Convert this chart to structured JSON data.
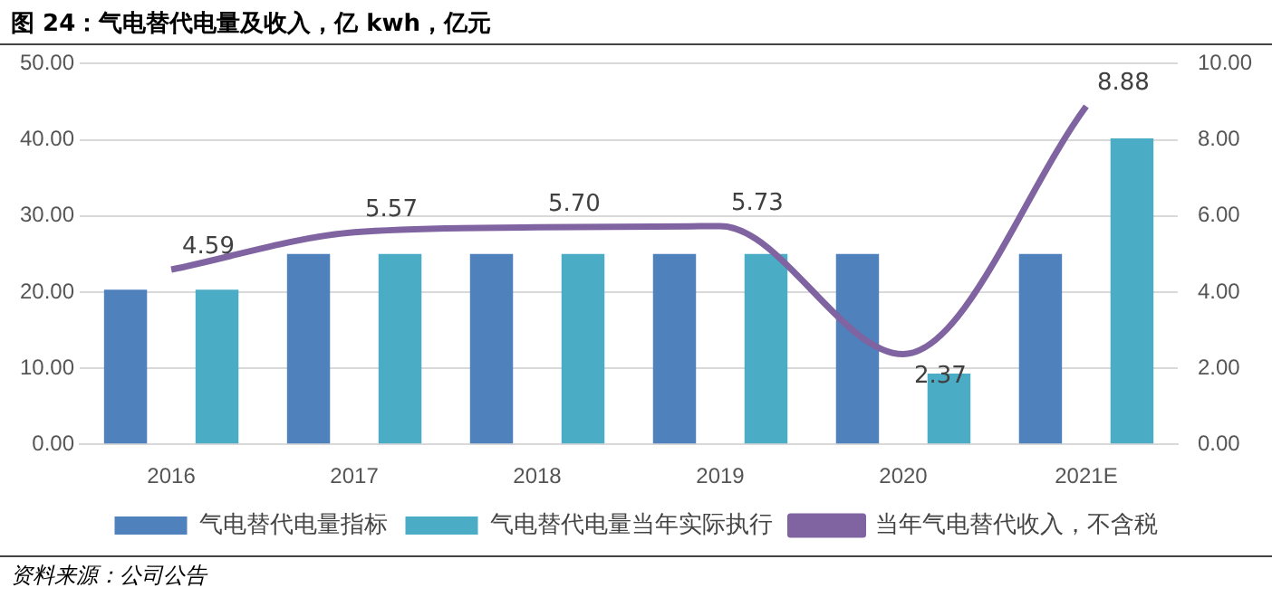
{
  "chart_data": {
    "type": "bar",
    "title": "图 24：气电替代电量及收入，亿 kwh，亿元",
    "categories": [
      "2016",
      "2017",
      "2018",
      "2019",
      "2020",
      "2021E"
    ],
    "series": [
      {
        "name": "气电替代电量指标",
        "color": "#4f81bd",
        "values": [
          20.3,
          25,
          25,
          25,
          25,
          25
        ]
      },
      {
        "name": "气电替代电量当年实际执行",
        "color": "#4bacc6",
        "values": [
          20.3,
          25,
          25,
          25,
          9.3,
          40.2
        ]
      },
      {
        "name": "当年气电替代收入，不含税",
        "type": "line",
        "axis": "y2",
        "color": "#8064a2",
        "values": [
          4.59,
          5.57,
          5.7,
          5.73,
          2.37,
          8.88
        ],
        "value_labels": [
          "4.59",
          "5.57",
          "5.70",
          "5.73",
          "2.37",
          "8.88"
        ]
      }
    ],
    "ylim": [
      0,
      50
    ],
    "yticks": [
      {
        "value": 0,
        "label": "0.00"
      },
      {
        "value": 10,
        "label": "10.00"
      },
      {
        "value": 20,
        "label": "20.00"
      },
      {
        "value": 30,
        "label": "30.00"
      },
      {
        "value": 40,
        "label": "40.00"
      },
      {
        "value": 50,
        "label": "50.00"
      }
    ],
    "y2lim": [
      0,
      10
    ],
    "y2ticks": [
      {
        "value": 0,
        "label": "0.00"
      },
      {
        "value": 2,
        "label": "2.00"
      },
      {
        "value": 4,
        "label": "4.00"
      },
      {
        "value": 6,
        "label": "6.00"
      },
      {
        "value": 8,
        "label": "8.00"
      },
      {
        "value": 10,
        "label": "10.00"
      }
    ],
    "grid": "y",
    "legend": "bottom",
    "annotations": [
      "资料来源：公司公告"
    ]
  }
}
